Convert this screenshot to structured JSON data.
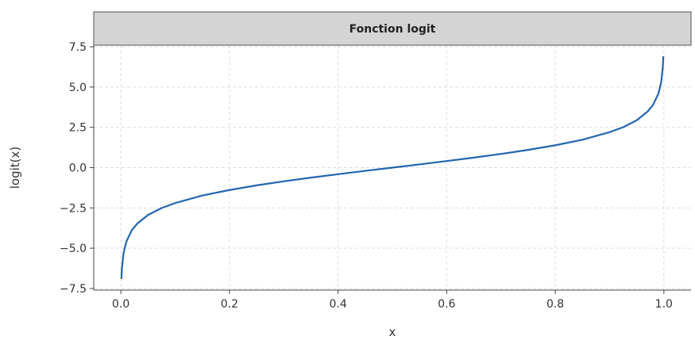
{
  "chart_data": {
    "type": "line",
    "title": "Fonction logit",
    "xlabel": "x",
    "ylabel": "logit(x)",
    "xlim": [
      -0.05,
      1.05
    ],
    "ylim": [
      -7.6,
      7.6
    ],
    "x_ticks": [
      0.0,
      0.2,
      0.4,
      0.6,
      0.8,
      1.0
    ],
    "x_tick_labels": [
      "0.0",
      "0.2",
      "0.4",
      "0.6",
      "0.8",
      "1.0"
    ],
    "y_ticks": [
      -7.5,
      -5.0,
      -2.5,
      0.0,
      2.5,
      5.0,
      7.5
    ],
    "y_tick_labels": [
      "−7.5",
      "−5.0",
      "−2.5",
      "0.0",
      "2.5",
      "5.0",
      "7.5"
    ],
    "grid": true,
    "legend": "none",
    "series": [
      {
        "color": "#2166b0",
        "x": [
          0.001,
          0.002,
          0.005,
          0.01,
          0.02,
          0.03,
          0.05,
          0.075,
          0.1,
          0.15,
          0.2,
          0.25,
          0.3,
          0.35,
          0.4,
          0.45,
          0.5,
          0.55,
          0.6,
          0.65,
          0.7,
          0.75,
          0.8,
          0.85,
          0.9,
          0.925,
          0.95,
          0.97,
          0.98,
          0.99,
          0.995,
          0.998,
          0.999
        ],
        "y": [
          -6.91,
          -6.21,
          -5.29,
          -4.6,
          -3.89,
          -3.48,
          -2.94,
          -2.51,
          -2.2,
          -1.73,
          -1.39,
          -1.1,
          -0.85,
          -0.62,
          -0.41,
          -0.2,
          0.0,
          0.2,
          0.41,
          0.62,
          0.85,
          1.1,
          1.39,
          1.73,
          2.2,
          2.51,
          2.94,
          3.48,
          3.89,
          4.6,
          5.29,
          6.21,
          6.91
        ]
      }
    ]
  }
}
